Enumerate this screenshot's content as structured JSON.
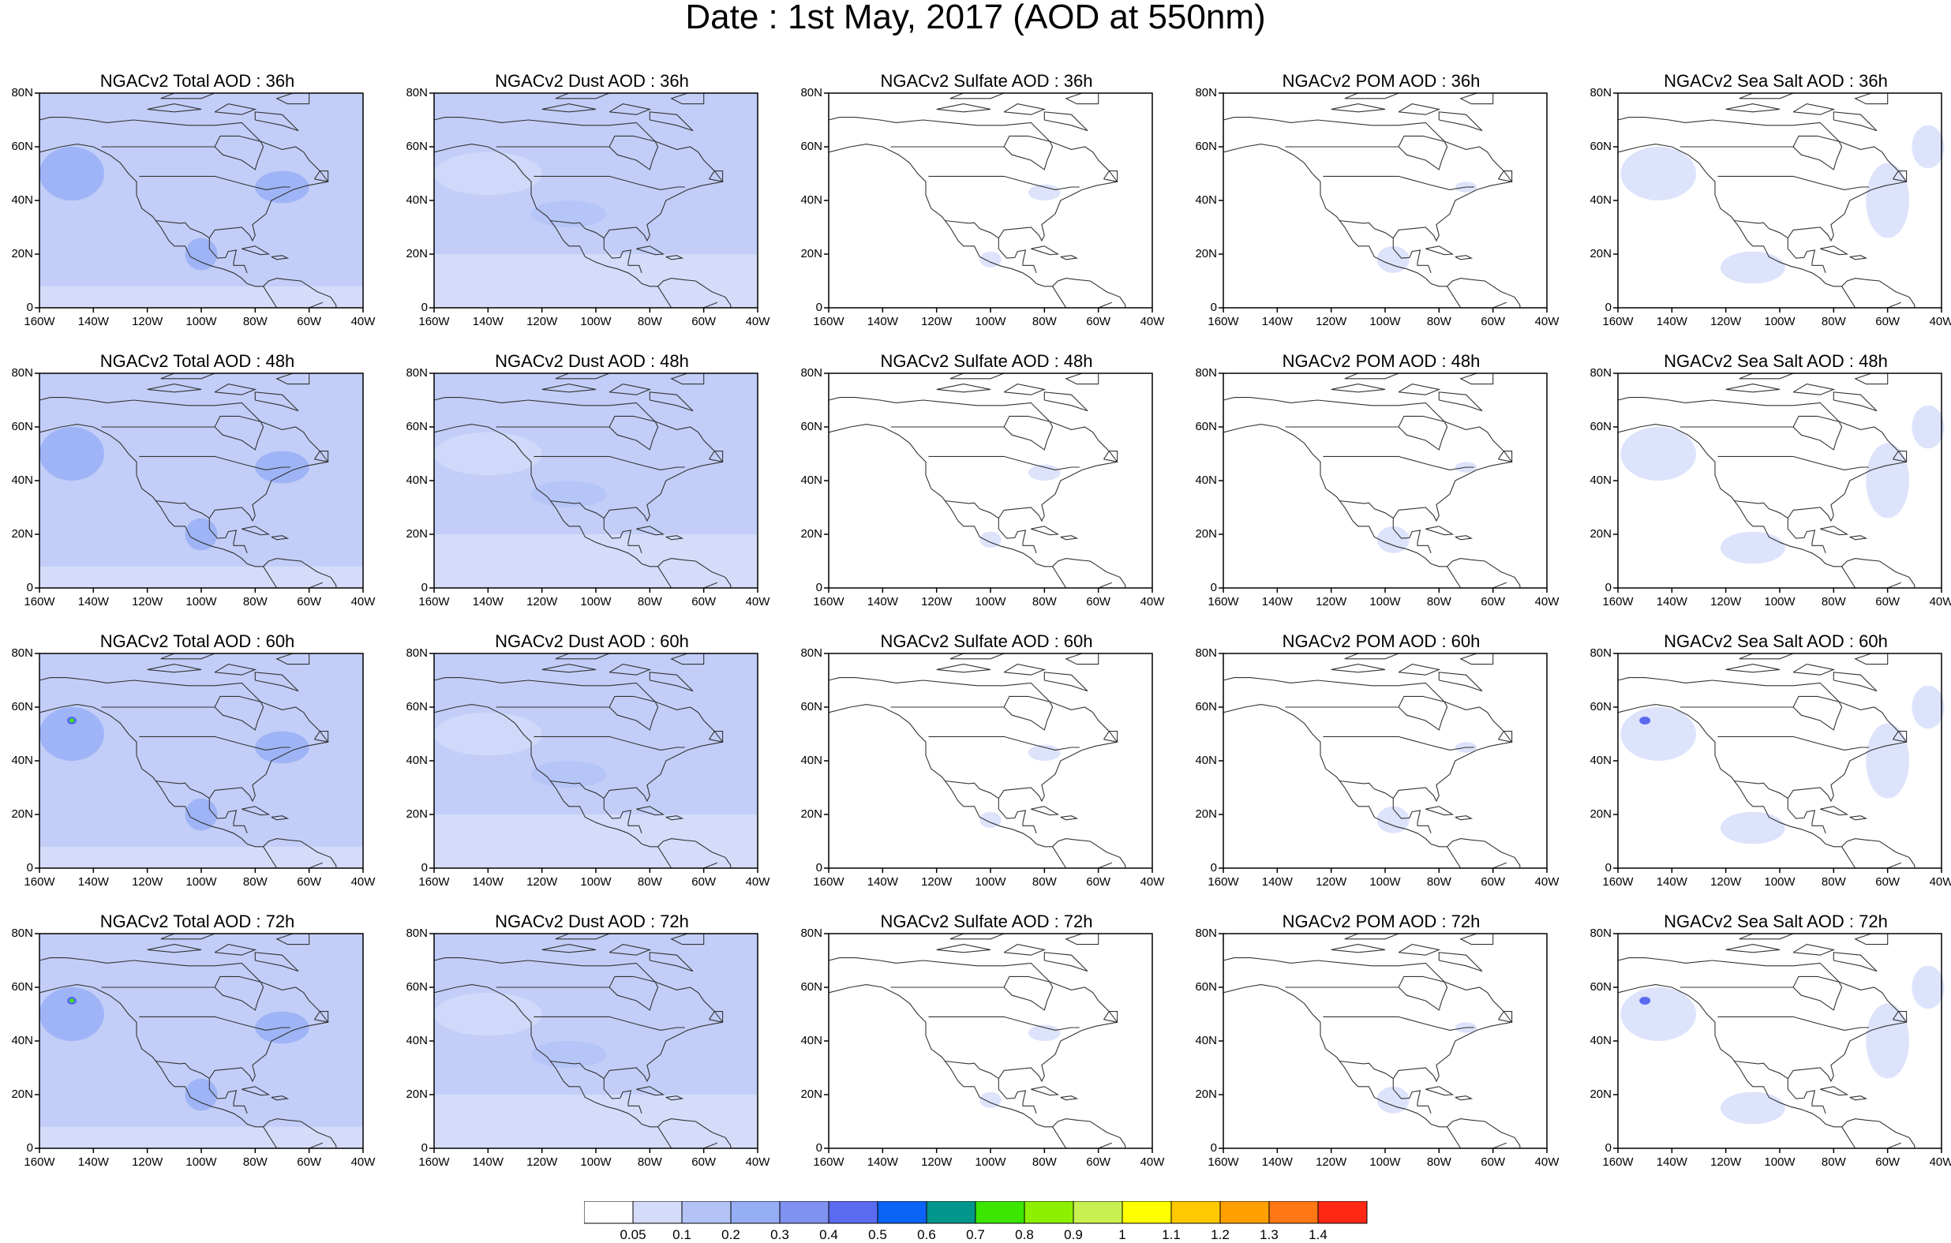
{
  "title": "Date : 1st May, 2017 (AOD at 550nm)",
  "panels": [
    {
      "title": "NGACv2 Total AOD : 36h",
      "type": "total"
    },
    {
      "title": "NGACv2 Dust AOD : 36h",
      "type": "dust"
    },
    {
      "title": "NGACv2 Sulfate AOD : 36h",
      "type": "sulfate"
    },
    {
      "title": "NGACv2 POM AOD : 36h",
      "type": "pom"
    },
    {
      "title": "NGACv2 Sea Salt AOD : 36h",
      "type": "seasalt"
    },
    {
      "title": "NGACv2 Total AOD : 48h",
      "type": "total"
    },
    {
      "title": "NGACv2 Dust AOD : 48h",
      "type": "dust"
    },
    {
      "title": "NGACv2 Sulfate AOD : 48h",
      "type": "sulfate"
    },
    {
      "title": "NGACv2 POM AOD : 48h",
      "type": "pom"
    },
    {
      "title": "NGACv2 Sea Salt AOD : 48h",
      "type": "seasalt"
    },
    {
      "title": "NGACv2 Total AOD : 60h",
      "type": "total"
    },
    {
      "title": "NGACv2 Dust AOD : 60h",
      "type": "dust"
    },
    {
      "title": "NGACv2 Sulfate AOD : 60h",
      "type": "sulfate"
    },
    {
      "title": "NGACv2 POM AOD : 60h",
      "type": "pom"
    },
    {
      "title": "NGACv2 Sea Salt AOD : 60h",
      "type": "seasalt"
    },
    {
      "title": "NGACv2 Total AOD : 72h",
      "type": "total"
    },
    {
      "title": "NGACv2 Dust AOD : 72h",
      "type": "dust"
    },
    {
      "title": "NGACv2 Sulfate AOD : 72h",
      "type": "sulfate"
    },
    {
      "title": "NGACv2 POM AOD : 72h",
      "type": "pom"
    },
    {
      "title": "NGACv2 Sea Salt  AOD : 72h",
      "type": "seasalt"
    }
  ],
  "lat_labels": [
    "80N",
    "60N",
    "40N",
    "20N",
    "0"
  ],
  "lon_labels": [
    "160W",
    "140W",
    "120W",
    "100W",
    "80W",
    "60W",
    "40W"
  ],
  "colorbar": {
    "labels": [
      "0.05",
      "0.1",
      "0.2",
      "0.3",
      "0.4",
      "0.5",
      "0.6",
      "0.7",
      "0.8",
      "0.9",
      "1",
      "1.1",
      "1.2",
      "1.3",
      "1.4"
    ],
    "colors": [
      "#ffffff",
      "#d4dcfa",
      "#b3c3f6",
      "#95aef5",
      "#7f92f0",
      "#5a6bf0",
      "#0a64f5",
      "#00968c",
      "#3ce600",
      "#8cf000",
      "#c8f050",
      "#ffff00",
      "#ffc800",
      "#ffa000",
      "#ff7814",
      "#ff2814"
    ]
  }
}
